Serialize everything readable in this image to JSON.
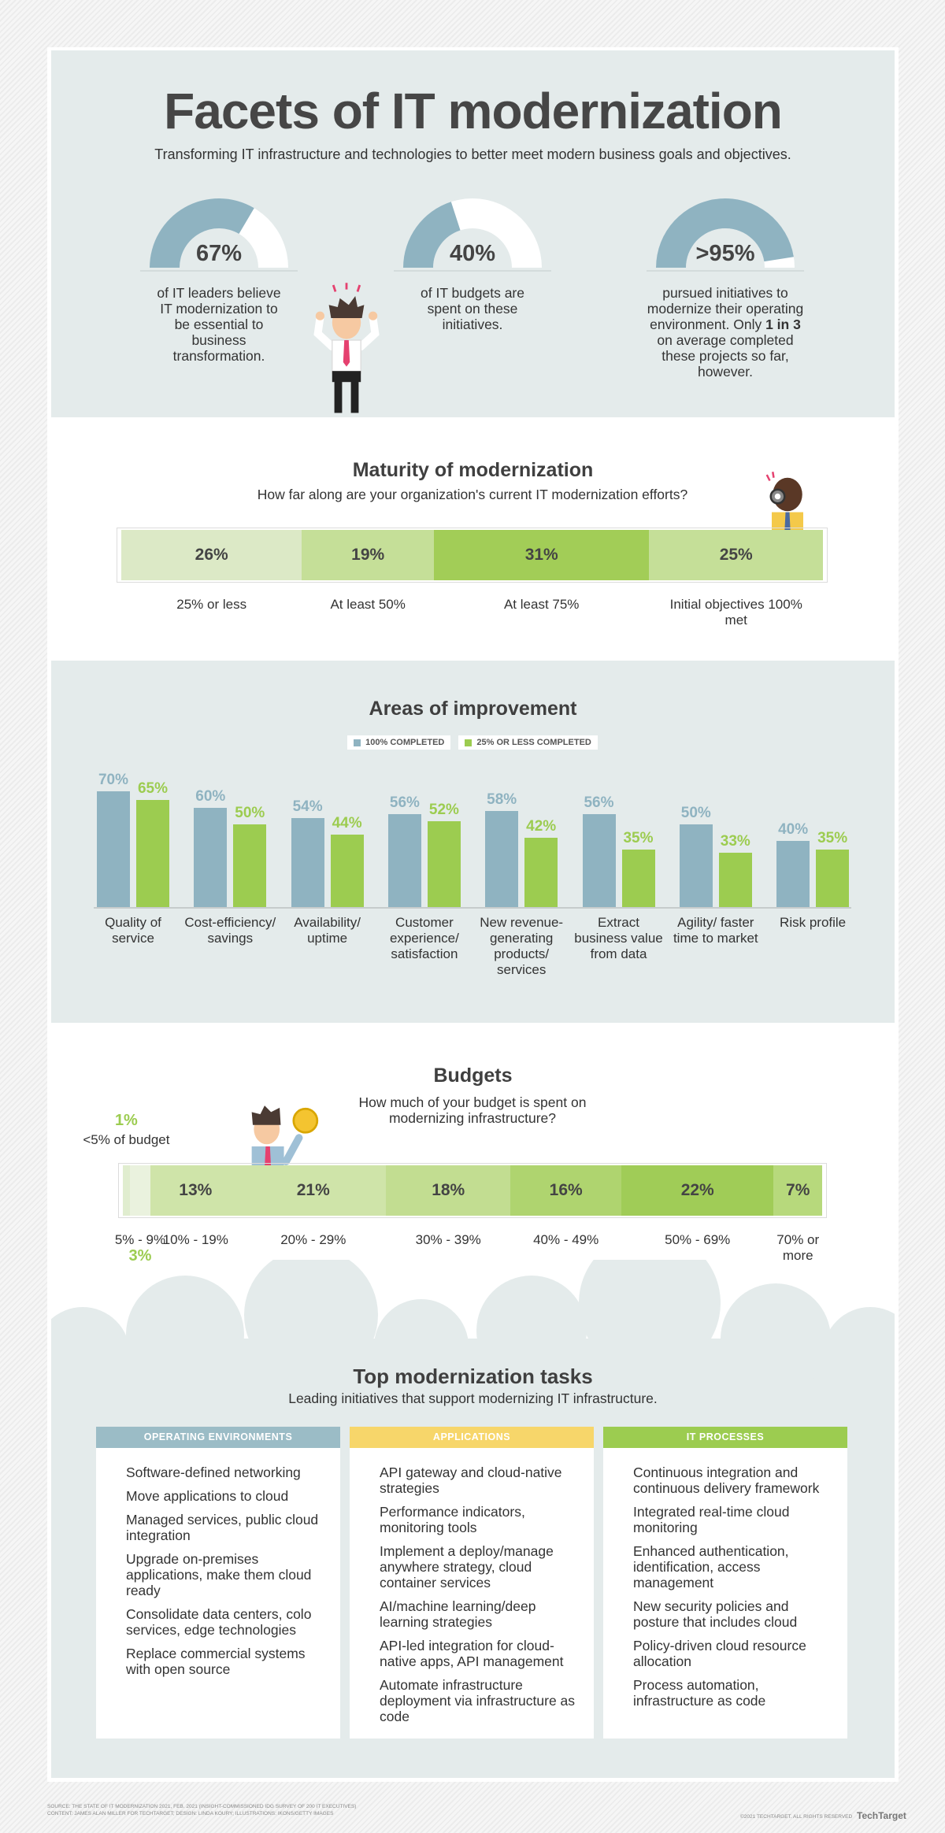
{
  "header": {
    "title": "Facets of IT modernization",
    "subtitle": "Transforming IT infrastructure and technologies to better meet modern business goals and objectives."
  },
  "stats_range": [
    0,
    100
  ],
  "stats_color": "#8fb3c1",
  "stats": [
    {
      "value": 67,
      "label": "67%",
      "text": "of IT leaders believe IT modernization to be essential to business transformation."
    },
    {
      "value": 40,
      "label": "40%",
      "text": "of IT budgets are spent on these initiatives."
    },
    {
      "value": 95,
      "label": ">95%",
      "text": "pursued initiatives to modernize their operating environment.",
      "text_continued": [
        {
          "text": "Only"
        },
        {
          "text": "1 in 3",
          "bold": true
        },
        {
          "text": "on average completed these projects so far, however."
        }
      ]
    }
  ],
  "chart_data": [
    {
      "type": "stacked_bar",
      "title": "Maturity of modernization",
      "subtitle": "How far along are your organization's current IT modernization efforts?",
      "categories": [
        "25% or less",
        "At least 50%",
        "At least 75%",
        "Initial objectives 100% met"
      ],
      "values": [
        26,
        19,
        31,
        25
      ],
      "value_labels": [
        "26%",
        "19%",
        "31%",
        "25%"
      ],
      "colors": [
        "#dce9c6",
        "#c5df98",
        "#a2cd57",
        "#c5df98"
      ]
    },
    {
      "type": "grouped_bar",
      "title": "Areas of improvement",
      "categories": [
        "Quality of service",
        "Cost-efficiency/ savings",
        "Availability/ uptime",
        "Customer experience/ satisfaction",
        "New revenue-generating products/ services",
        "Extract business value from data",
        "Agility/ faster time to market",
        "Risk profile"
      ],
      "series": [
        {
          "name": "100% COMPLETED",
          "color": "#8fb3c1",
          "values": [
            70,
            60,
            54,
            56,
            58,
            56,
            50,
            40
          ],
          "value_labels": [
            "70%",
            "60%",
            "54%",
            "56%",
            "58%",
            "56%",
            "50%",
            "40%"
          ]
        },
        {
          "name": "25% OR LESS COMPLETED",
          "color": "#9ccc50",
          "values": [
            65,
            50,
            44,
            52,
            42,
            35,
            33,
            35
          ],
          "value_labels": [
            "65%",
            "50%",
            "44%",
            "52%",
            "42%",
            "35%",
            "33%",
            "35%"
          ]
        }
      ]
    },
    {
      "type": "stacked_bar",
      "title": "Budgets",
      "subtitle": "How much of your budget is spent on modernizing infrastructure?",
      "categories": [
        "<5% of budget",
        "5% - 9%",
        "10% - 19%",
        "20% - 29%",
        "30% - 39%",
        "40% - 49%",
        "50% - 69%",
        "70% or more"
      ],
      "values": [
        1,
        3,
        13,
        21,
        18,
        16,
        22,
        7
      ],
      "value_labels": [
        "1%",
        "3%",
        "13%",
        "21%",
        "18%",
        "16%",
        "22%",
        "7%"
      ],
      "colors": [
        "#e0edcf",
        "#eaf2de",
        "#cfe4a9",
        "#cfe4a9",
        "#c2dd91",
        "#afd46f",
        "#a0cc57",
        "#b7d97c"
      ],
      "outside_label_color": "#9ccc50"
    }
  ],
  "tasks_title": "Top modernization tasks",
  "tasks_subtitle": "Leading initiatives that support modernizing IT infrastructure.",
  "tasks": [
    {
      "heading": "OPERATING ENVIRONMENTS",
      "color": "#9bbcc6",
      "items": [
        "Software-defined networking",
        "Move applications to cloud",
        "Managed services, public cloud integration",
        "Upgrade on-premises applications, make them cloud ready",
        "Consolidate data centers, colo services, edge technologies",
        "Replace commercial systems with open source"
      ]
    },
    {
      "heading": "APPLICATIONS",
      "color": "#f7d66a",
      "items": [
        "API gateway and cloud-native strategies",
        "Performance indicators, monitoring tools",
        "Implement a deploy/manage anywhere strategy, cloud container services",
        "AI/machine learning/deep learning strategies",
        "API-led integration for cloud-native apps, API management",
        "Automate infrastructure deployment via infrastructure as code"
      ]
    },
    {
      "heading": "IT PROCESSES",
      "color": "#9ccc50",
      "items": [
        "Continuous integration and continuous delivery framework",
        "Integrated real-time cloud monitoring",
        "Enhanced authentication, identification, access management",
        "New security policies and posture that includes cloud",
        "Policy-driven cloud resource allocation",
        "Process automation, infrastructure as code"
      ]
    }
  ],
  "footer": {
    "source": "SOURCE: THE STATE OF IT MODERNIZATION 2021, FEB. 2021 (INSIGHT-COMMISSIONED IDG SURVEY OF 200 IT EXECUTIVES)",
    "credits": "CONTENT: JAMES ALAN MILLER FOR TECHTARGET; DESIGN: LINDA KOURY; ILLUSTRATIONS: IKONS/GETTY IMAGES",
    "copyright": "©2021 TECHTARGET. ALL RIGHTS RESERVED",
    "brand": "TechTarget"
  }
}
